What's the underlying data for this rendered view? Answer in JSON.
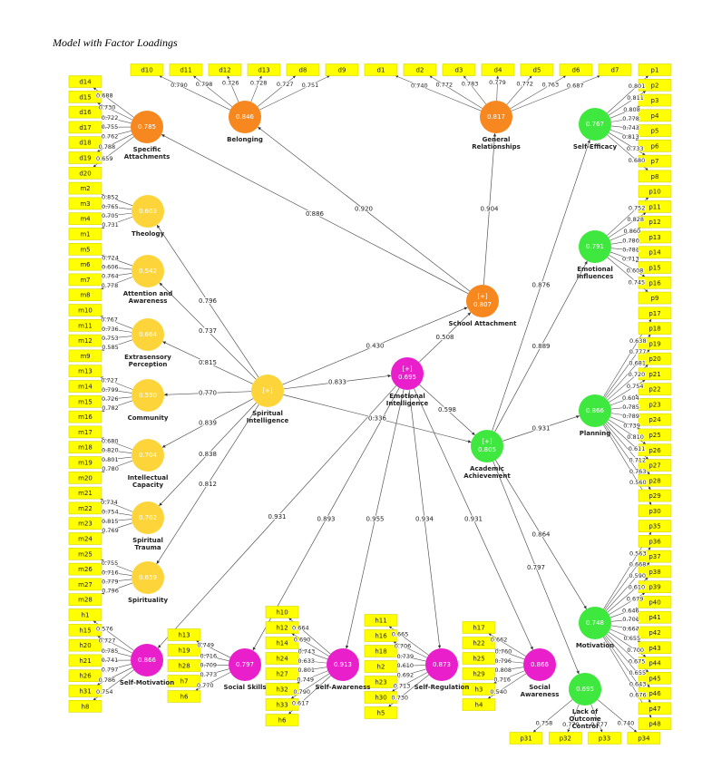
{
  "title": "Model with Factor Loadings",
  "nodes": [
    {
      "label": "Specific Attachments",
      "value": "0.785",
      "color": "#f7871f",
      "indicators": [
        "d14",
        "d15",
        "d16",
        "d17",
        "d18",
        "d19",
        "d20"
      ],
      "loadings": [
        "0.688",
        "0.730",
        "0.722",
        "0.755",
        "0.762",
        "0.788",
        "0.659"
      ],
      "paths": []
    },
    {
      "label": "Belonging",
      "value": "0.846",
      "color": "#f7871f",
      "indicators": [
        "d10",
        "d11",
        "d12",
        "d13",
        "d8",
        "d9"
      ],
      "loadings": [
        "0.790",
        "0.798",
        "0.726",
        "0.728",
        "0.727",
        "0.751"
      ],
      "paths": []
    },
    {
      "label": "General Relationships",
      "value": "0.817",
      "color": "#f7871f",
      "indicators": [
        "d1",
        "d2",
        "d3",
        "d4",
        "d5",
        "d6",
        "d7"
      ],
      "loadings": [
        "0.740",
        "0.772",
        "0.783",
        "0.779",
        "0.772",
        "0.763",
        "0.687"
      ],
      "paths": []
    },
    {
      "label": "Self-Efficacy",
      "value": "0.767",
      "color": "#3ee83e",
      "indicators": [
        "p1",
        "p2",
        "p3",
        "p4",
        "p5",
        "p6",
        "p7",
        "p8"
      ],
      "loadings": [
        "0.801",
        "0.811",
        "0.808",
        "0.778",
        "0.743",
        "0.813",
        "0.733",
        "0.680"
      ],
      "paths": []
    },
    {
      "label": "Theology",
      "value": "0.603",
      "color": "#fdd53a",
      "indicators": [
        "m2",
        "m3",
        "m4",
        "m1"
      ],
      "loadings": [
        "0.852",
        "0.765",
        "0.705",
        "0.731"
      ],
      "paths": []
    },
    {
      "label": "Attention and Awareness",
      "value": "0.542",
      "color": "#fdd53a",
      "indicators": [
        "m5",
        "m6",
        "m7",
        "m8"
      ],
      "loadings": [
        "0.724",
        "0.606",
        "0.764",
        "0.778"
      ],
      "paths": []
    },
    {
      "label": "Extrasensory Perception",
      "value": "0.664",
      "color": "#fdd53a",
      "indicators": [
        "m10",
        "m11",
        "m12",
        "m9"
      ],
      "loadings": [
        "0.767",
        "0.736",
        "0.753",
        "0.585"
      ],
      "paths": []
    },
    {
      "label": "Community",
      "value": "0.590",
      "color": "#fdd53a",
      "indicators": [
        "m13",
        "m14",
        "m15",
        "m16"
      ],
      "loadings": [
        "0.727",
        "0.799",
        "0.726",
        "0.782"
      ],
      "paths": []
    },
    {
      "label": "Intellectual Capacity",
      "value": "0.704",
      "color": "#fdd53a",
      "indicators": [
        "m17",
        "m18",
        "m19",
        "m20"
      ],
      "loadings": [
        "0.680",
        "0.820",
        "0.801",
        "0.780"
      ],
      "paths": []
    },
    {
      "label": "Spiritual Trauma",
      "value": "0.702",
      "color": "#fdd53a",
      "indicators": [
        "m21",
        "m22",
        "m23",
        "m24"
      ],
      "loadings": [
        "0.734",
        "0.754",
        "0.815",
        "0.769"
      ],
      "paths": []
    },
    {
      "label": "Spirituality",
      "value": "0.659",
      "color": "#fdd53a",
      "indicators": [
        "m25",
        "m26",
        "m27",
        "m28"
      ],
      "loadings": [
        "0.755",
        "0.716",
        "0.779",
        "0.796"
      ],
      "paths": []
    },
    {
      "label": "Spiritual Intelligence",
      "marker": "[+]",
      "color": "#fdd53a",
      "indicators": [],
      "loadings": [],
      "paths": [
        {
          "to": "Theology",
          "coefficient": "0.796"
        },
        {
          "to": "Attention and Awareness",
          "coefficient": "0.737"
        },
        {
          "to": "Extrasensory Perception",
          "coefficient": "0.815"
        },
        {
          "to": "Community",
          "coefficient": "0.770"
        },
        {
          "to": "Intellectual Capacity",
          "coefficient": "0.839"
        },
        {
          "to": "Spiritual Trauma",
          "coefficient": "0.838"
        },
        {
          "to": "Spirituality",
          "coefficient": "0.812"
        },
        {
          "to": "School Attachment",
          "coefficient": "0.430"
        },
        {
          "to": "Emotional Intelligence",
          "coefficient": "0.833"
        },
        {
          "to": "Academic Achievement",
          "coefficient": "0.336"
        }
      ]
    },
    {
      "label": "School Attachment",
      "marker": "[+]",
      "value": "0.807",
      "color": "#f7871f",
      "indicators": [],
      "loadings": [],
      "paths": [
        {
          "to": "Specific Attachments",
          "coefficient": "0.886"
        },
        {
          "to": "Belonging",
          "coefficient": "0.920"
        },
        {
          "to": "General Relationships",
          "coefficient": "0.904"
        }
      ]
    },
    {
      "label": "Emotional Intelligence",
      "marker": "[+]",
      "value": "0.695",
      "color": "#ea1fcc",
      "indicators": [],
      "loadings": [],
      "paths": [
        {
          "to": "School Attachment",
          "coefficient": "0.508"
        },
        {
          "to": "Academic Achievement",
          "coefficient": "0.598"
        },
        {
          "to": "Self-Motivation",
          "coefficient": "0.931"
        },
        {
          "to": "Social Skills",
          "coefficient": "0.893"
        },
        {
          "to": "Self-Awareness",
          "coefficient": "0.955"
        },
        {
          "to": "Self-Regulation",
          "coefficient": "0.934"
        },
        {
          "to": "Social Awareness",
          "coefficient": "0.931"
        }
      ]
    },
    {
      "label": "Academic Achievement",
      "marker": "[+]",
      "value": "0.805",
      "color": "#3ee83e",
      "indicators": [],
      "loadings": [],
      "paths": [
        {
          "to": "Self-Efficacy",
          "coefficient": "0.876"
        },
        {
          "to": "Emotional Influences",
          "coefficient": "0.889"
        },
        {
          "to": "Planning",
          "coefficient": "0.931"
        },
        {
          "to": "Motivation",
          "coefficient": "0.864"
        },
        {
          "to": "Lack of Outcome Control",
          "coefficient": "0.797"
        }
      ]
    },
    {
      "label": "Emotional Influences",
      "value": "0.791",
      "color": "#3ee83e",
      "indicators": [
        "p10",
        "p11",
        "p12",
        "p13",
        "p14",
        "p15",
        "p16",
        "p9"
      ],
      "loadings": [
        "0.752",
        "0.828",
        "0.860",
        "0.780",
        "0.781",
        "0.713",
        "0.608",
        "0.745"
      ],
      "paths": []
    },
    {
      "label": "Planning",
      "value": "0.866",
      "color": "#3ee83e",
      "indicators": [
        "p17",
        "p18",
        "p19",
        "p20",
        "p21",
        "p22",
        "p23",
        "p24",
        "p25",
        "p26",
        "p27",
        "p28",
        "p29",
        "p30"
      ],
      "loadings": [
        "0.638",
        "0.777",
        "0.681",
        "0.720",
        "0.754",
        "0.604",
        "0.785",
        "0.789",
        "0.739",
        "0.810",
        "0.611",
        "0.712",
        "0.763",
        "0.560"
      ],
      "paths": []
    },
    {
      "label": "Motivation",
      "value": "0.748",
      "color": "#3ee83e",
      "indicators": [
        "p35",
        "p36",
        "p37",
        "p38",
        "p39",
        "p40",
        "p41",
        "p42",
        "p43",
        "p44",
        "p45",
        "p46",
        "p47",
        "p48"
      ],
      "loadings": [
        "0.563",
        "0.668",
        "0.590",
        "0.610",
        "0.679",
        "0.646",
        "0.701",
        "0.667",
        "0.655",
        "0.700",
        "0.675",
        "0.655",
        "0.643",
        "0.676"
      ],
      "paths": []
    },
    {
      "label": "Lack of Outcome Control",
      "value": "0.695",
      "color": "#3ee83e",
      "indicators": [
        "p31",
        "p32",
        "p33",
        "p34"
      ],
      "loadings": [
        "0.758",
        "0.770",
        "0.777",
        "0.740"
      ],
      "paths": []
    },
    {
      "label": "Self-Motivation",
      "value": "0.866",
      "color": "#ea1fcc",
      "indicators": [
        "h1",
        "h15",
        "h20",
        "h21",
        "h26",
        "h31",
        "h8"
      ],
      "loadings": [
        "0.576",
        "0.727",
        "0.785",
        "0.741",
        "0.797",
        "0.786",
        "0.754"
      ],
      "paths": []
    },
    {
      "label": "Social Skills",
      "value": "0.797",
      "color": "#ea1fcc",
      "indicators": [
        "h13",
        "h19",
        "h28",
        "h7",
        "h6"
      ],
      "loadings": [
        "0.749",
        "0.716",
        "0.709",
        "0.773",
        "0.770"
      ],
      "paths": []
    },
    {
      "label": "Self-Awareness",
      "value": "0.913",
      "color": "#ea1fcc",
      "indicators": [
        "h10",
        "h12",
        "h14",
        "h24",
        "h27",
        "h32",
        "h33",
        "h6"
      ],
      "loadings": [
        "0.664",
        "0.690",
        "0.743",
        "0.633",
        "0.801",
        "0.749",
        "0.790",
        "0.617"
      ],
      "paths": []
    },
    {
      "label": "Self-Regulation",
      "value": "0.873",
      "color": "#ea1fcc",
      "indicators": [
        "h11",
        "h16",
        "h18",
        "h2",
        "h23",
        "h30",
        "h5"
      ],
      "loadings": [
        "0.665",
        "0.706",
        "0.739",
        "0.610",
        "0.692",
        "0.713",
        "0.730"
      ],
      "paths": []
    },
    {
      "label": "Social Awareness",
      "value": "0.866",
      "color": "#ea1fcc",
      "indicators": [
        "h17",
        "h22",
        "h25",
        "h29",
        "h3",
        "h4"
      ],
      "loadings": [
        "0.662",
        "0.760",
        "0.796",
        "0.808",
        "0.716",
        "0.540"
      ],
      "paths": []
    }
  ]
}
